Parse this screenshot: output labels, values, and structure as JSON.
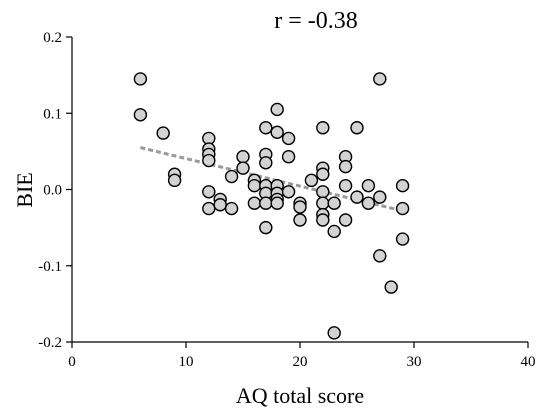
{
  "chart_data": {
    "type": "scatter",
    "title": "r = -0.38",
    "xlabel": "AQ total score",
    "ylabel": "BIE",
    "xlim": [
      0,
      40
    ],
    "ylim": [
      -0.2,
      0.2
    ],
    "x_ticks": [
      {
        "value": 0,
        "label": "0"
      },
      {
        "value": 10,
        "label": "10"
      },
      {
        "value": 20,
        "label": "20"
      },
      {
        "value": 30,
        "label": "30"
      },
      {
        "value": 40,
        "label": "40"
      }
    ],
    "y_ticks": [
      {
        "value": 0.2,
        "label": "0.2"
      },
      {
        "value": 0.1,
        "label": "0.1"
      },
      {
        "value": 0.0,
        "label": "0.0"
      },
      {
        "value": -0.1,
        "label": "-0.1"
      },
      {
        "value": -0.2,
        "label": "-0.2"
      }
    ],
    "grid": false,
    "trendline": {
      "x": [
        6,
        29
      ],
      "y": [
        0.055,
        -0.028
      ]
    },
    "points": [
      {
        "x": 6,
        "y": 0.145
      },
      {
        "x": 6,
        "y": 0.098
      },
      {
        "x": 8,
        "y": 0.074
      },
      {
        "x": 9,
        "y": 0.02
      },
      {
        "x": 9,
        "y": 0.012
      },
      {
        "x": 12,
        "y": 0.067
      },
      {
        "x": 12,
        "y": 0.053
      },
      {
        "x": 12,
        "y": 0.046
      },
      {
        "x": 12,
        "y": 0.038
      },
      {
        "x": 12,
        "y": -0.003
      },
      {
        "x": 12,
        "y": -0.025
      },
      {
        "x": 13,
        "y": -0.013
      },
      {
        "x": 13,
        "y": -0.02
      },
      {
        "x": 14,
        "y": 0.017
      },
      {
        "x": 14,
        "y": -0.025
      },
      {
        "x": 15,
        "y": 0.043
      },
      {
        "x": 15,
        "y": 0.028
      },
      {
        "x": 16,
        "y": 0.012
      },
      {
        "x": 16,
        "y": 0.005
      },
      {
        "x": 16,
        "y": -0.018
      },
      {
        "x": 17,
        "y": 0.081
      },
      {
        "x": 17,
        "y": 0.046
      },
      {
        "x": 17,
        "y": 0.035
      },
      {
        "x": 17,
        "y": 0.005
      },
      {
        "x": 17,
        "y": -0.005
      },
      {
        "x": 17,
        "y": -0.018
      },
      {
        "x": 17,
        "y": -0.05
      },
      {
        "x": 18,
        "y": 0.105
      },
      {
        "x": 18,
        "y": 0.075
      },
      {
        "x": 18,
        "y": 0.005
      },
      {
        "x": 18,
        "y": -0.005
      },
      {
        "x": 18,
        "y": -0.013
      },
      {
        "x": 18,
        "y": -0.018
      },
      {
        "x": 19,
        "y": 0.067
      },
      {
        "x": 19,
        "y": 0.043
      },
      {
        "x": 19,
        "y": -0.003
      },
      {
        "x": 20,
        "y": -0.018
      },
      {
        "x": 20,
        "y": -0.023
      },
      {
        "x": 20,
        "y": -0.04
      },
      {
        "x": 21,
        "y": 0.012
      },
      {
        "x": 22,
        "y": 0.081
      },
      {
        "x": 22,
        "y": 0.028
      },
      {
        "x": 22,
        "y": 0.02
      },
      {
        "x": 22,
        "y": -0.003
      },
      {
        "x": 22,
        "y": -0.018
      },
      {
        "x": 22,
        "y": -0.033
      },
      {
        "x": 22,
        "y": -0.04
      },
      {
        "x": 23,
        "y": -0.018
      },
      {
        "x": 23,
        "y": -0.055
      },
      {
        "x": 23,
        "y": -0.188
      },
      {
        "x": 24,
        "y": 0.043
      },
      {
        "x": 24,
        "y": 0.03
      },
      {
        "x": 24,
        "y": 0.005
      },
      {
        "x": 24,
        "y": -0.04
      },
      {
        "x": 25,
        "y": 0.081
      },
      {
        "x": 25,
        "y": -0.01
      },
      {
        "x": 26,
        "y": 0.005
      },
      {
        "x": 26,
        "y": -0.018
      },
      {
        "x": 27,
        "y": 0.145
      },
      {
        "x": 27,
        "y": -0.01
      },
      {
        "x": 27,
        "y": -0.087
      },
      {
        "x": 28,
        "y": -0.128
      },
      {
        "x": 29,
        "y": 0.005
      },
      {
        "x": 29,
        "y": -0.025
      },
      {
        "x": 29,
        "y": -0.065
      }
    ]
  }
}
